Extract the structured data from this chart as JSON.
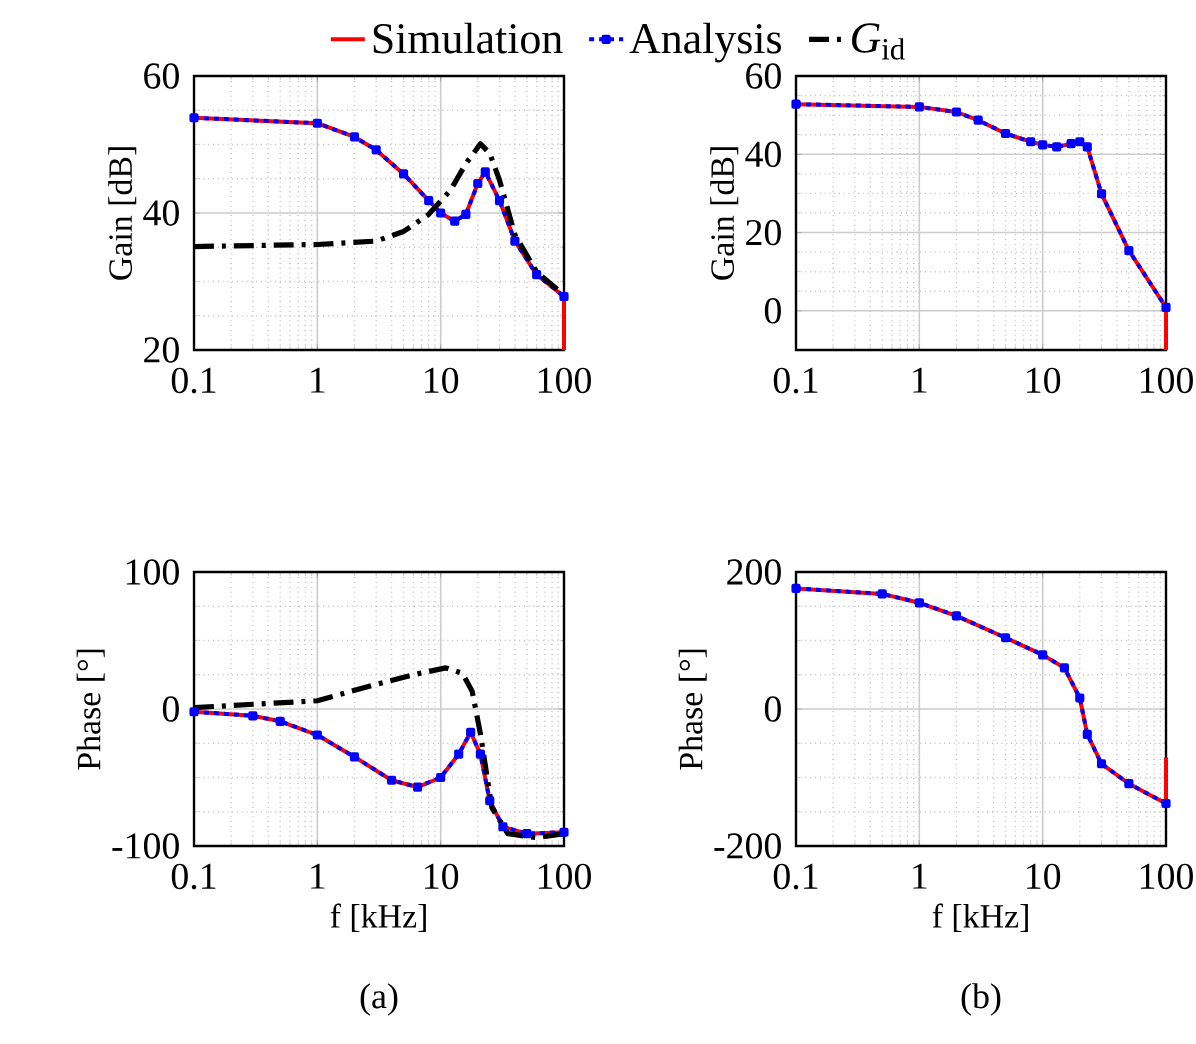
{
  "chart_data": [
    {
      "type": "line",
      "log": "x",
      "ylabel": "Gain [dB]",
      "xlim": [
        0.1,
        100
      ],
      "xticks": [
        0.1,
        1,
        10,
        100
      ],
      "ylim": [
        20,
        60
      ],
      "yticks": [
        20,
        40,
        60
      ],
      "grid": true,
      "legend": "top",
      "series": [
        {
          "name": "Simulation",
          "color": "#ff0000",
          "line_style": "solid",
          "x": [
            0.1,
            1,
            2,
            3,
            5,
            8,
            10,
            13,
            16,
            20,
            23,
            30,
            40,
            60,
            100,
            100
          ],
          "values": [
            53.9,
            53.1,
            51.1,
            49.2,
            45.7,
            41.8,
            40.0,
            38.8,
            39.8,
            44.3,
            46.0,
            41.8,
            35.9,
            31.0,
            27.8,
            20
          ]
        },
        {
          "name": "Analysis",
          "color": "#0000ff",
          "line_style": "dotted",
          "marker": "square",
          "x": [
            0.1,
            1,
            2,
            3,
            5,
            8,
            10,
            13,
            16,
            20,
            23,
            30,
            40,
            60,
            100
          ],
          "values": [
            53.9,
            53.1,
            51.1,
            49.2,
            45.7,
            41.8,
            40.0,
            38.8,
            39.8,
            44.3,
            46.0,
            41.8,
            35.9,
            31.0,
            27.8
          ]
        },
        {
          "name": "*G*$_{id}$",
          "color": "#000000",
          "line_style": "dashed",
          "x": [
            0.1,
            1,
            3,
            5,
            8,
            12,
            16,
            21,
            25,
            30,
            40,
            60,
            100
          ],
          "values": [
            35.1,
            35.4,
            35.9,
            37.3,
            39.8,
            43.3,
            47.2,
            50.1,
            48.7,
            44.8,
            36.8,
            31.4,
            28.0
          ]
        }
      ]
    },
    {
      "type": "line",
      "log": "x",
      "ylabel": "Gain [dB]",
      "xlim": [
        0.1,
        100
      ],
      "xticks": [
        0.1,
        1,
        10,
        100
      ],
      "ylim": [
        -10,
        60
      ],
      "yticks": [
        0,
        20,
        40,
        60
      ],
      "grid": true,
      "series": [
        {
          "color": "#ff0000",
          "line_style": "solid",
          "x": [
            0.1,
            1,
            2,
            3,
            5,
            8,
            10,
            13,
            17,
            20,
            23,
            30,
            50,
            100,
            100
          ],
          "values": [
            52.8,
            52.1,
            50.8,
            48.7,
            45.3,
            43.2,
            42.4,
            41.9,
            42.7,
            43.2,
            41.9,
            29.9,
            15.4,
            0.9,
            -10
          ]
        },
        {
          "color": "#0000ff",
          "line_style": "dotted",
          "marker": "square",
          "x": [
            0.1,
            1,
            2,
            3,
            5,
            8,
            10,
            13,
            17,
            20,
            23,
            30,
            50,
            100
          ],
          "values": [
            52.8,
            52.1,
            50.8,
            48.7,
            45.3,
            43.2,
            42.4,
            41.9,
            42.7,
            43.2,
            41.9,
            29.9,
            15.4,
            0.9
          ]
        }
      ]
    },
    {
      "type": "line",
      "log": "x",
      "ylabel": "Phase [°]",
      "xlabel": "f [kHz]",
      "xlim": [
        0.1,
        100
      ],
      "xticks": [
        0.1,
        1,
        10,
        100
      ],
      "ylim": [
        -100,
        100
      ],
      "yticks": [
        -100,
        0,
        100
      ],
      "grid": true,
      "annotations": [
        "(a)"
      ],
      "series": [
        {
          "color": "#ff0000",
          "line_style": "solid",
          "x": [
            0.1,
            0.3,
            0.5,
            1,
            2,
            4,
            6.5,
            10,
            14,
            17.5,
            21,
            25,
            32,
            50,
            100
          ],
          "values": [
            -2,
            -5,
            -9,
            -19,
            -35,
            -52,
            -57,
            -50,
            -33,
            -17,
            -33,
            -67,
            -86,
            -91,
            -90
          ]
        },
        {
          "color": "#0000ff",
          "line_style": "dotted",
          "marker": "square",
          "x": [
            0.1,
            0.3,
            0.5,
            1,
            2,
            4,
            6.5,
            10,
            14,
            17.5,
            21,
            25,
            32,
            50,
            100
          ],
          "values": [
            -2,
            -5,
            -9,
            -19,
            -35,
            -52,
            -57,
            -50,
            -33,
            -17,
            -33,
            -67,
            -86,
            -91,
            -90
          ]
        },
        {
          "color": "#000000",
          "line_style": "dashed",
          "x": [
            0.1,
            1,
            3,
            6,
            11,
            15,
            18,
            21,
            26,
            35,
            60,
            100
          ],
          "values": [
            1,
            6,
            18,
            25,
            30,
            26,
            13,
            -18,
            -72,
            -91,
            -94,
            -91
          ]
        }
      ]
    },
    {
      "type": "line",
      "log": "x",
      "ylabel": "Phase [°]",
      "xlabel": "f [kHz]",
      "xlim": [
        0.1,
        100
      ],
      "xticks": [
        0.1,
        1,
        10,
        100
      ],
      "ylim": [
        -200,
        200
      ],
      "yticks": [
        -200,
        0,
        200
      ],
      "grid": true,
      "annotations": [
        "(b)"
      ],
      "series": [
        {
          "color": "#ff0000",
          "line_style": "solid",
          "x": [
            0.1,
            0.5,
            1,
            2,
            5,
            10,
            15,
            20,
            23,
            30,
            50,
            100,
            100
          ],
          "values": [
            176,
            168,
            155,
            136,
            104,
            79,
            60,
            16,
            -37,
            -80,
            -109,
            -138,
            -71
          ]
        },
        {
          "color": "#0000ff",
          "line_style": "dotted",
          "marker": "square",
          "x": [
            0.1,
            0.5,
            1,
            2,
            5,
            10,
            15,
            20,
            23,
            30,
            50,
            100
          ],
          "values": [
            176,
            168,
            155,
            136,
            104,
            79,
            60,
            16,
            -37,
            -80,
            -109,
            -138
          ]
        }
      ]
    }
  ]
}
